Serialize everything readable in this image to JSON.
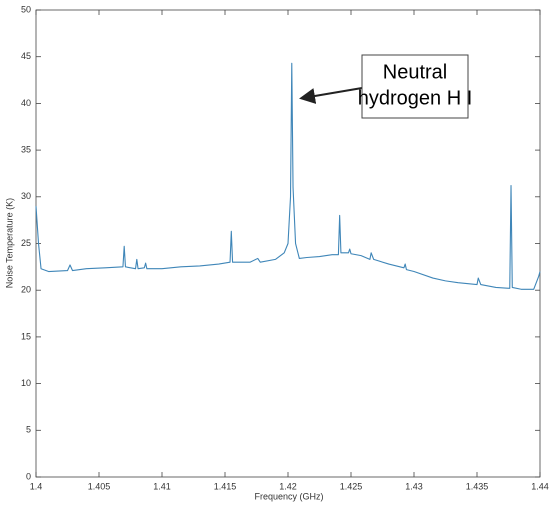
{
  "chart_data": {
    "type": "line",
    "xlabel": "Frequency (GHz)",
    "ylabel": "Noise Temperature (K)",
    "annotation": [
      "Neutral",
      "hydrogen H I"
    ],
    "x": [
      1.4,
      1.4002,
      1.4004,
      1.401,
      1.4025,
      1.4027,
      1.4029,
      1.404,
      1.4055,
      1.4069,
      1.407,
      1.4071,
      1.4079,
      1.408,
      1.4081,
      1.4086,
      1.4087,
      1.4088,
      1.41,
      1.4115,
      1.413,
      1.4145,
      1.4154,
      1.4155,
      1.4156,
      1.417,
      1.4176,
      1.4178,
      1.419,
      1.4197,
      1.42,
      1.4202,
      1.4203,
      1.4204,
      1.4206,
      1.4209,
      1.4215,
      1.4225,
      1.4235,
      1.424,
      1.4241,
      1.4242,
      1.4248,
      1.4249,
      1.425,
      1.4258,
      1.4265,
      1.4266,
      1.4268,
      1.428,
      1.4292,
      1.4293,
      1.4294,
      1.43,
      1.4315,
      1.4325,
      1.4335,
      1.435,
      1.4351,
      1.4353,
      1.4365,
      1.4376,
      1.4377,
      1.4378,
      1.4385,
      1.4395,
      1.4399,
      1.44
    ],
    "series": [
      {
        "color": "#3f86b8",
        "values": [
          29,
          25,
          22.3,
          22.0,
          22.1,
          22.7,
          22.1,
          22.3,
          22.4,
          22.5,
          24.7,
          22.5,
          22.3,
          23.3,
          22.3,
          22.4,
          22.9,
          22.3,
          22.3,
          22.5,
          22.6,
          22.8,
          23.0,
          26.3,
          23.0,
          23.0,
          23.4,
          23.0,
          23.3,
          24.0,
          25.0,
          30,
          44.3,
          31,
          25,
          23.4,
          23.5,
          23.6,
          23.8,
          23.8,
          28.0,
          24.0,
          24.0,
          24.4,
          23.9,
          23.7,
          23.3,
          24.0,
          23.3,
          22.8,
          22.4,
          22.8,
          22.2,
          22.0,
          21.3,
          21.0,
          20.8,
          20.6,
          21.3,
          20.6,
          20.3,
          20.2,
          31.2,
          20.3,
          20.1,
          20.1,
          21.5,
          22
        ]
      }
    ],
    "xlim": [
      1.4,
      1.44
    ],
    "xticks": [
      1.4,
      1.405,
      1.41,
      1.415,
      1.42,
      1.425,
      1.43,
      1.435,
      1.44
    ],
    "ylim": [
      0,
      50
    ],
    "yticks": [
      0,
      5,
      10,
      15,
      20,
      25,
      30,
      35,
      40,
      45,
      50
    ],
    "grid": false
  }
}
